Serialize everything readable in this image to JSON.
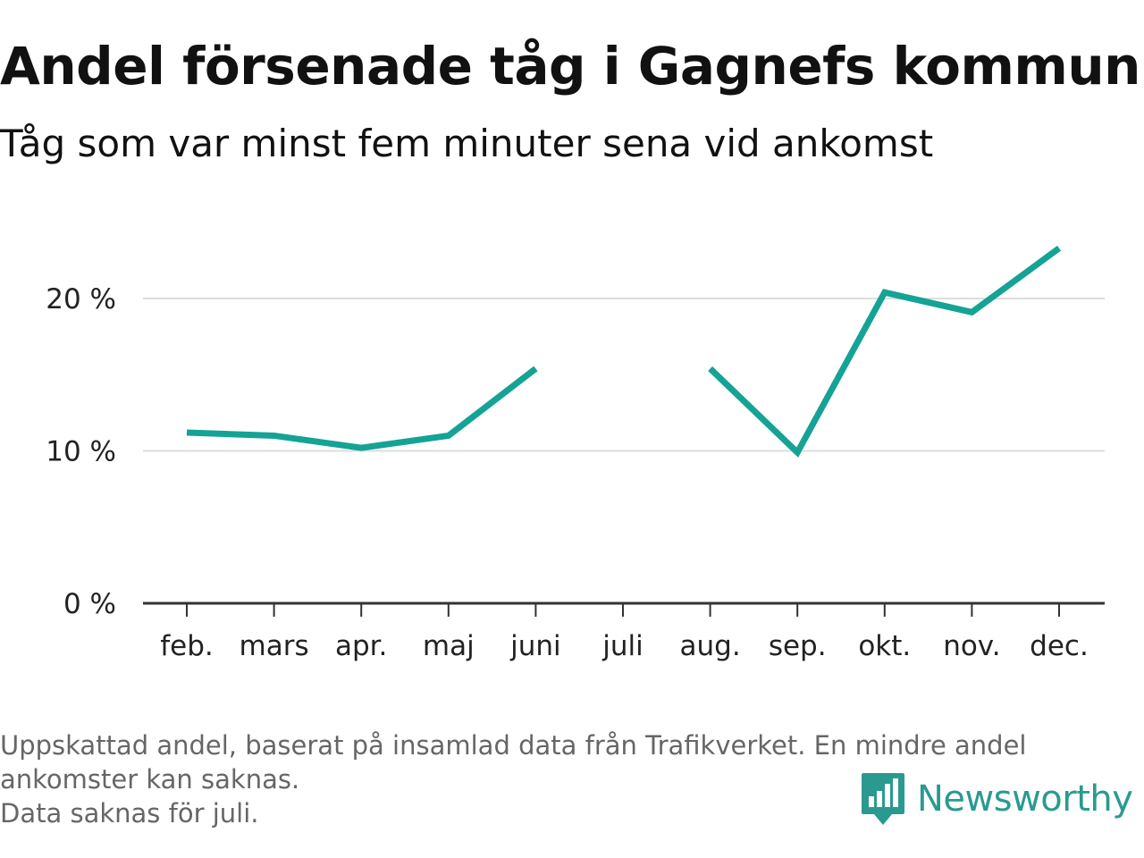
{
  "title": "Andel försenade tåg i Gagnefs kommun",
  "subtitle": "Tåg som var minst fem minuter sena vid ankomst",
  "footnote": {
    "line1": "Uppskattad andel, baserat på insamlad data från Trafikverket. En mindre andel",
    "line2": "ankomster kan saknas.",
    "line3": "Data saknas för juli."
  },
  "brand": {
    "name": "Newsworthy",
    "icon": "newsworthy-bar-chart-icon"
  },
  "colors": {
    "line": "#14a395",
    "grid": "#dddddd",
    "axis": "#333333",
    "text": "#222222",
    "brand": "#2a9a90"
  },
  "chart_data": {
    "type": "line",
    "categories": [
      "feb.",
      "mars",
      "apr.",
      "maj",
      "juni",
      "juli",
      "aug.",
      "sep.",
      "okt.",
      "nov.",
      "dec."
    ],
    "series": [
      {
        "values": [
          11.2,
          11.0,
          10.2,
          11.0,
          15.4,
          null,
          15.4,
          9.9,
          20.4,
          19.1,
          23.3
        ]
      }
    ],
    "y_ticks": [
      0,
      10,
      20
    ],
    "y_tick_labels": [
      "0 %",
      "10 %",
      "20 %"
    ],
    "ylim": [
      0,
      26
    ],
    "grid": true,
    "xlabel": "",
    "ylabel": ""
  }
}
